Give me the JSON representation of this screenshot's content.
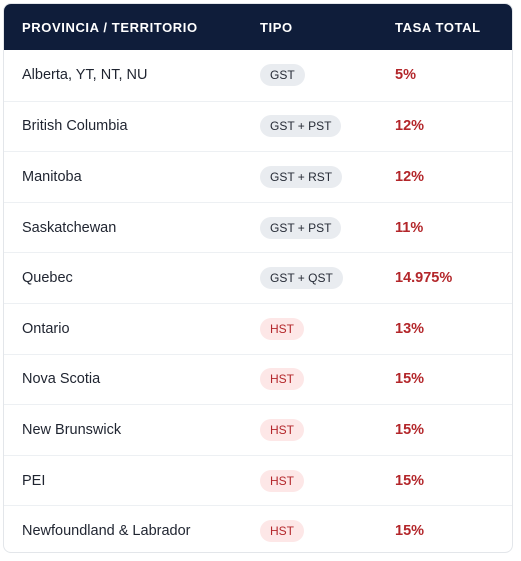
{
  "table": {
    "headers": {
      "province": "PROVINCIA / TERRITORIO",
      "type": "TIPO",
      "rate": "TASA TOTAL"
    },
    "rows": [
      {
        "province": "Alberta, YT, NT, NU",
        "type": "GST",
        "rate": "5%"
      },
      {
        "province": "British Columbia",
        "type": "GST + PST",
        "rate": "12%"
      },
      {
        "province": "Manitoba",
        "type": "GST + RST",
        "rate": "12%"
      },
      {
        "province": "Saskatchewan",
        "type": "GST + PST",
        "rate": "11%"
      },
      {
        "province": "Quebec",
        "type": "GST + QST",
        "rate": "14.975%"
      },
      {
        "province": "Ontario",
        "type": "HST",
        "rate": "13%"
      },
      {
        "province": "Nova Scotia",
        "type": "HST",
        "rate": "15%"
      },
      {
        "province": "New Brunswick",
        "type": "HST",
        "rate": "15%"
      },
      {
        "province": "PEI",
        "type": "HST",
        "rate": "15%"
      },
      {
        "province": "Newfoundland & Labrador",
        "type": "HST",
        "rate": "15%"
      }
    ]
  },
  "colors": {
    "header_bg": "#0f1d3a",
    "rate_text": "#b3262a",
    "badge_gst_bg": "#e9ecf0",
    "badge_hst_bg": "#fde7e7"
  }
}
